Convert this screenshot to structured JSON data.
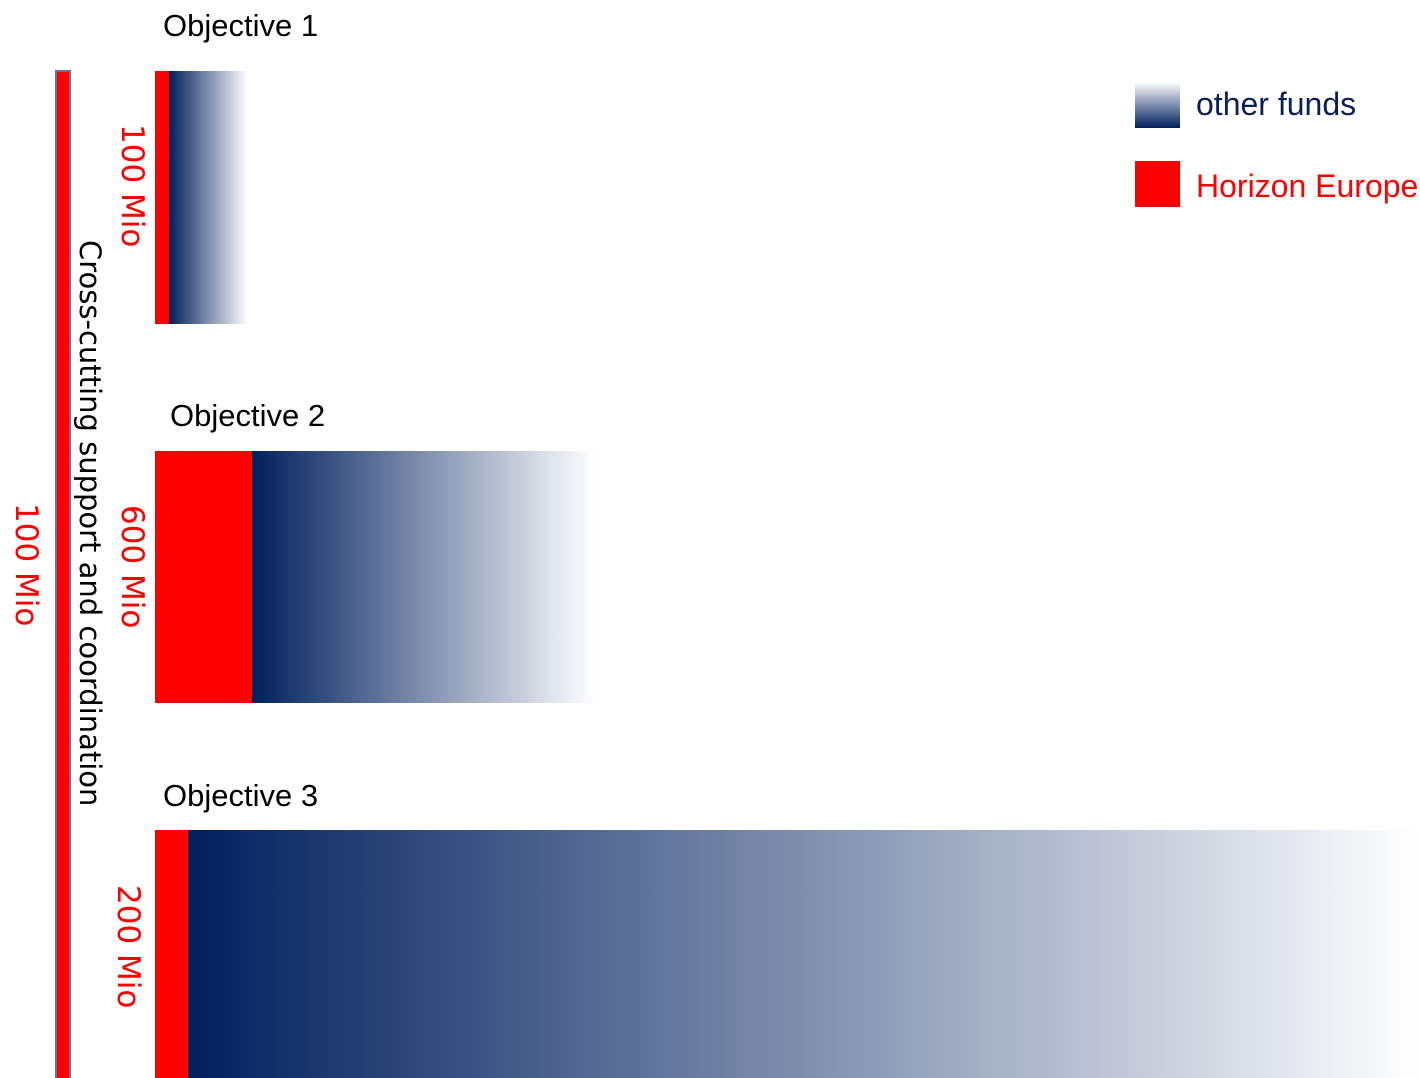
{
  "cross_cutting": {
    "title": "Cross-cutting support and coordination",
    "amount": "100 Mio"
  },
  "objectives": [
    {
      "title": "Objective 1",
      "amount": "100 Mio"
    },
    {
      "title": "Objective 2",
      "amount": "600 Mio"
    },
    {
      "title": "Objective 3",
      "amount": "200 Mio"
    }
  ],
  "legend": {
    "other_funds": "other funds",
    "horizon_europe": "Horizon Europe"
  },
  "colors": {
    "horizon_europe": "#ff0000",
    "other_funds": "#001f5c"
  }
}
